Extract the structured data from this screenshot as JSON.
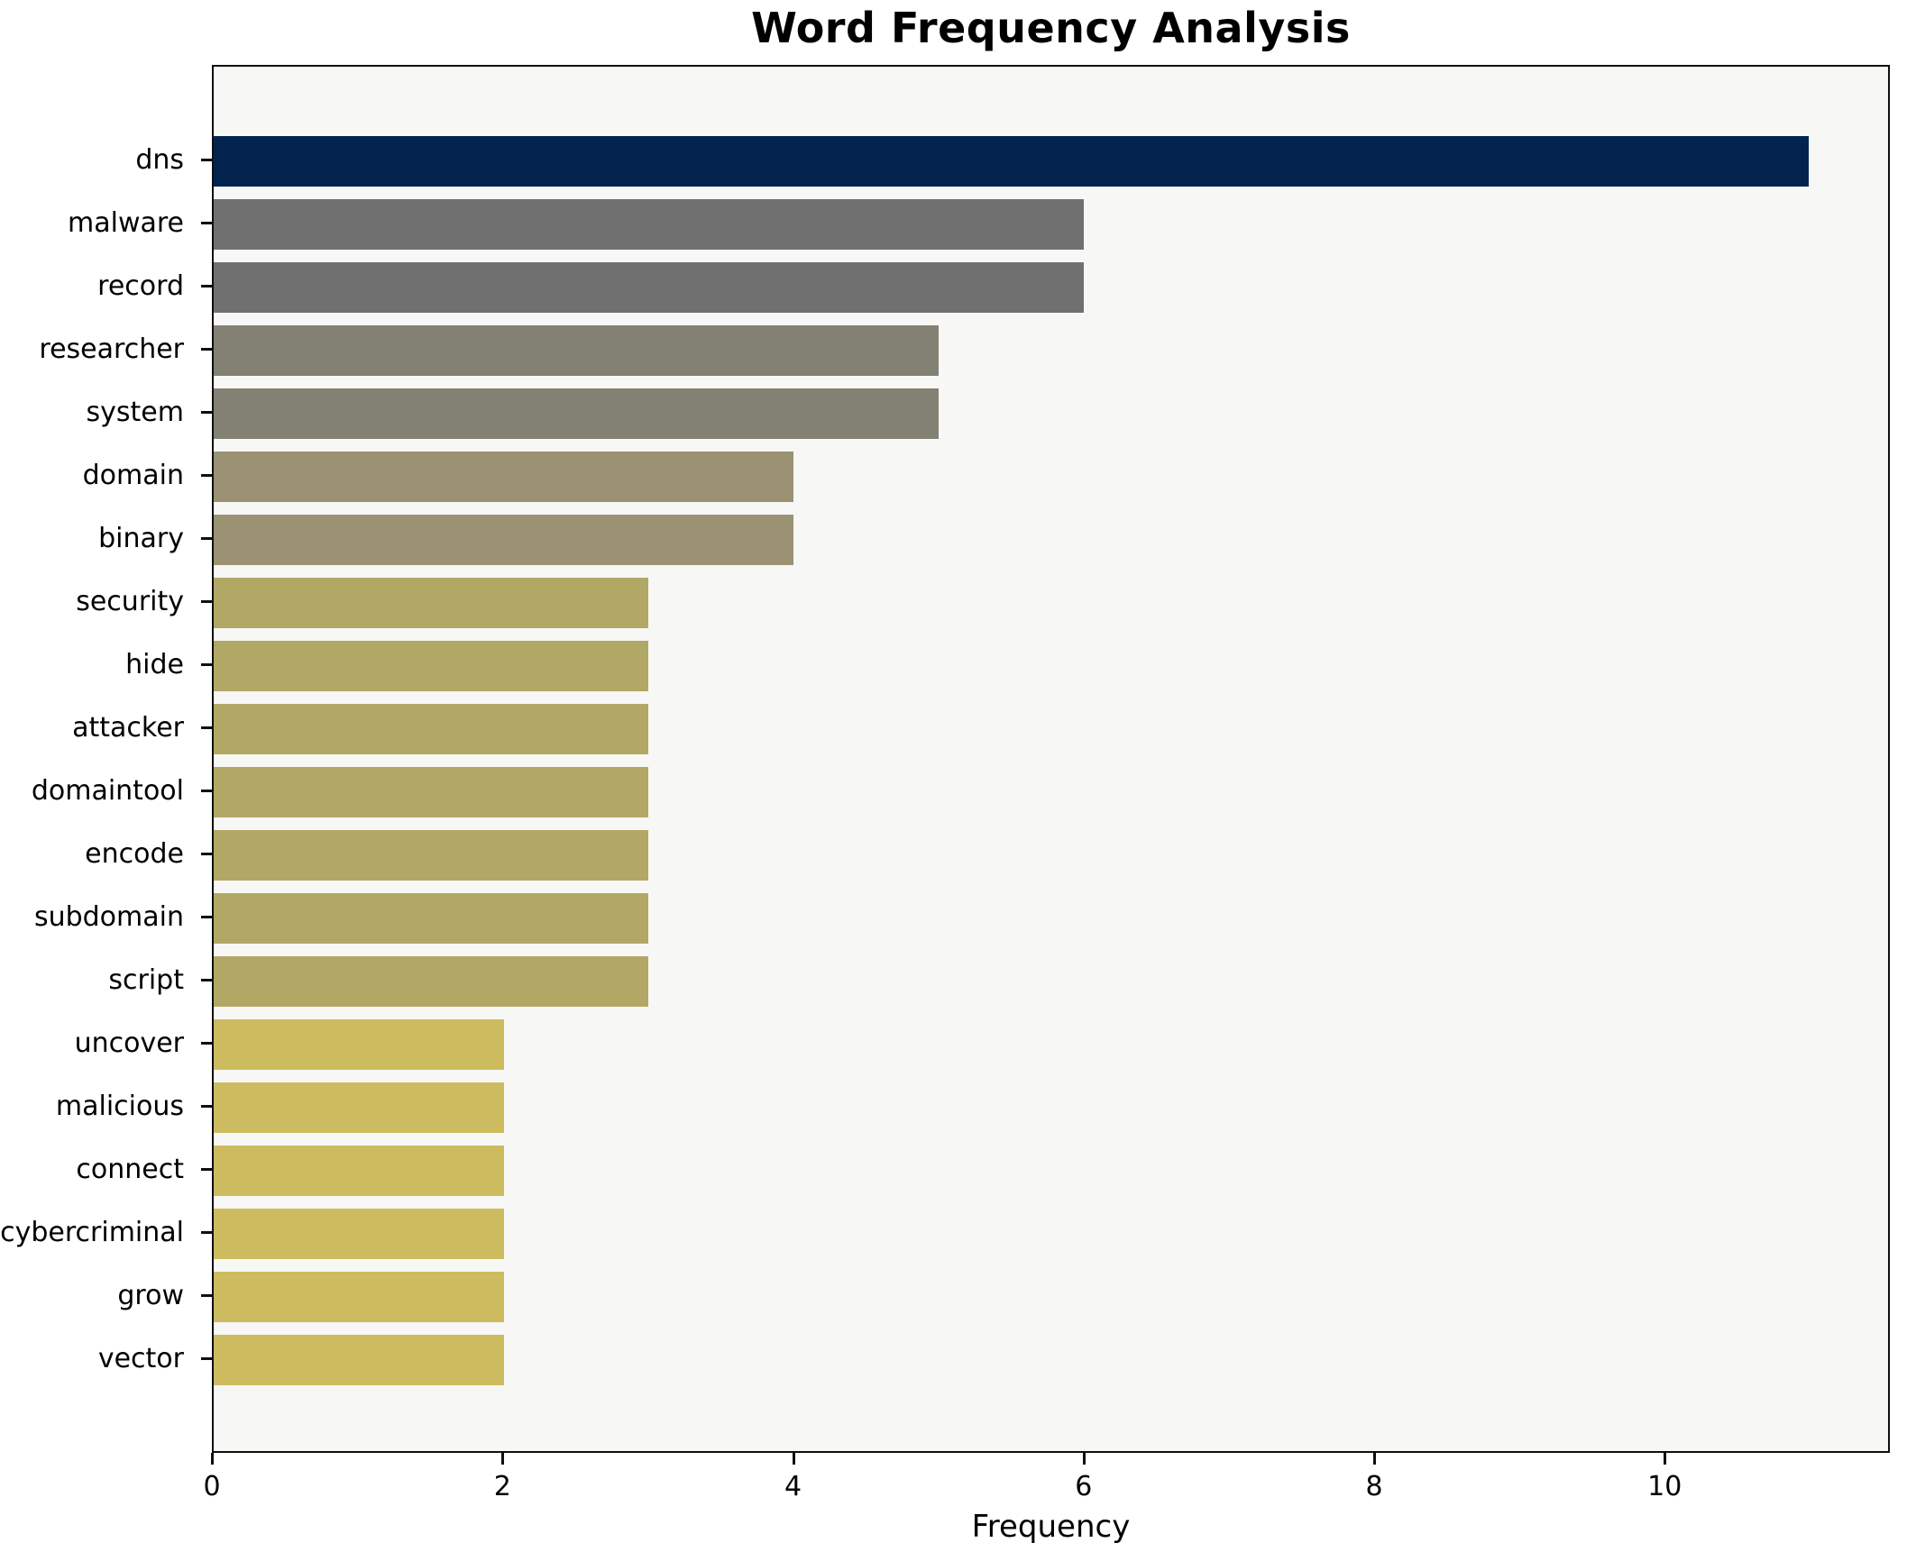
{
  "chart_data": {
    "type": "bar",
    "orientation": "horizontal",
    "title": "Word Frequency Analysis",
    "xlabel": "Frequency",
    "ylabel": "",
    "categories": [
      "dns",
      "malware",
      "record",
      "researcher",
      "system",
      "domain",
      "binary",
      "security",
      "hide",
      "attacker",
      "domaintool",
      "encode",
      "subdomain",
      "script",
      "uncover",
      "malicious",
      "connect",
      "cybercriminal",
      "grow",
      "vector"
    ],
    "values": [
      11,
      6,
      6,
      5,
      5,
      4,
      4,
      3,
      3,
      3,
      3,
      3,
      3,
      3,
      2,
      2,
      2,
      2,
      2,
      2
    ],
    "bar_colors": [
      "#03234f",
      "#707071",
      "#707071",
      "#838173",
      "#838173",
      "#9b9273",
      "#9b9273",
      "#b2a866",
      "#b2a866",
      "#b2a866",
      "#b2a866",
      "#b2a866",
      "#b2a866",
      "#b2a866",
      "#cdbb5f",
      "#cdbb5f",
      "#cdbb5f",
      "#cdbb5f",
      "#cdbb5f",
      "#cdbb5f"
    ],
    "xticks": [
      0,
      2,
      4,
      6,
      8,
      10
    ],
    "xlim": [
      0,
      11.55
    ],
    "grid": false,
    "legend_position": "none",
    "plot_background": "#f7f7f5",
    "figure_background": "#ffffff",
    "spine_color": "#0f0f0f"
  }
}
